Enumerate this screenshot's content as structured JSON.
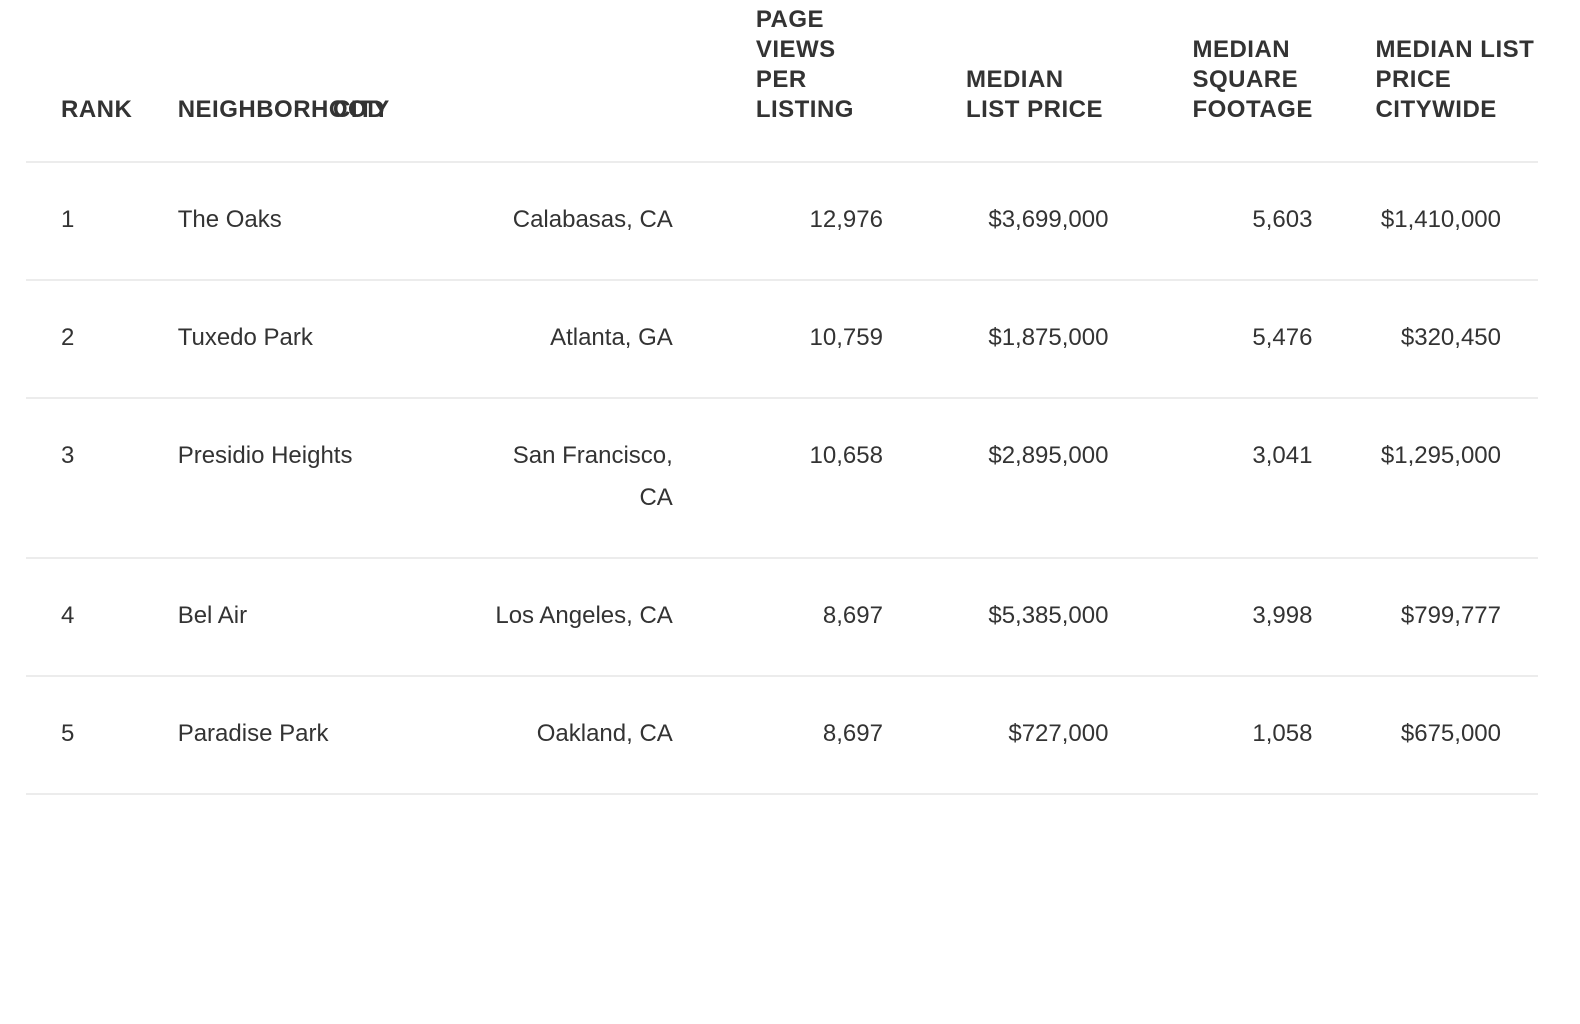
{
  "table": {
    "headers": {
      "rank": "RANK",
      "neighborhood": "NEIGHBORHOOD",
      "city": "CITY",
      "page_views": "PAGE VIEWS PER LISTING",
      "median_list_price": "MEDIAN LIST PRICE",
      "median_square_footage": "MEDIAN SQUARE FOOTAGE",
      "median_list_price_citywide": "MEDIAN LIST PRICE CITYWIDE"
    },
    "rows": [
      {
        "rank": "1",
        "neighborhood": "The Oaks",
        "city": "Calabasas, CA",
        "page_views": "12,976",
        "median_list_price": "$3,699,000",
        "median_square_footage": "5,603",
        "median_list_price_citywide": "$1,410,000"
      },
      {
        "rank": "2",
        "neighborhood": "Tuxedo Park",
        "city": "Atlanta, GA",
        "page_views": "10,759",
        "median_list_price": "$1,875,000",
        "median_square_footage": "5,476",
        "median_list_price_citywide": "$320,450"
      },
      {
        "rank": "3",
        "neighborhood": "Presidio Heights",
        "city": "San Francisco, CA",
        "page_views": "10,658",
        "median_list_price": "$2,895,000",
        "median_square_footage": "3,041",
        "median_list_price_citywide": "$1,295,000"
      },
      {
        "rank": "4",
        "neighborhood": "Bel Air",
        "city": "Los Angeles, CA",
        "page_views": "8,697",
        "median_list_price": "$5,385,000",
        "median_square_footage": "3,998",
        "median_list_price_citywide": "$799,777"
      },
      {
        "rank": "5",
        "neighborhood": "Paradise Park",
        "city": "Oakland, CA",
        "page_views": "8,697",
        "median_list_price": "$727,000",
        "median_square_footage": "1,058",
        "median_list_price_citywide": "$675,000"
      }
    ]
  }
}
